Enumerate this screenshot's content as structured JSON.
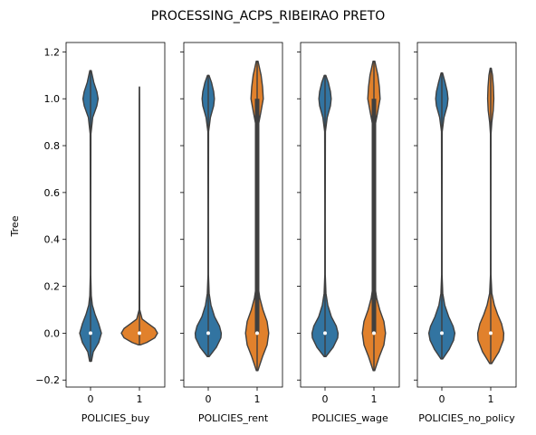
{
  "title": "PROCESSING_ACPS_RIBEIRAO PRETO",
  "chart_data": {
    "type": "violin",
    "title": "PROCESSING_ACPS_RIBEIRAO PRETO",
    "ylabel": "Tree",
    "ylim": [
      -0.23,
      1.24
    ],
    "yticks": [
      -0.2,
      0.0,
      0.2,
      0.4,
      0.6,
      0.8,
      1.0,
      1.2
    ],
    "ytick_labels": [
      "−0.2",
      "0.0",
      "0.2",
      "0.4",
      "0.6",
      "0.8",
      "1.0",
      "1.2"
    ],
    "grid": false,
    "colors": {
      "0": "#3274a1",
      "1": "#e1812c",
      "inner": "#3f3f3f",
      "median": "#ffffff"
    },
    "panels": [
      {
        "xlabel": "POLICIES_buy",
        "categories": [
          "0",
          "1"
        ],
        "violins": [
          {
            "category": "0",
            "median": 0.0,
            "q1": 0.0,
            "q3": 0.0,
            "min": -0.12,
            "max": 1.12,
            "profile": [
              [
                -0.12,
                0.05
              ],
              [
                -0.08,
                0.15
              ],
              [
                -0.04,
                0.45
              ],
              [
                0.0,
                0.6
              ],
              [
                0.04,
                0.45
              ],
              [
                0.08,
                0.25
              ],
              [
                0.12,
                0.1
              ],
              [
                0.16,
                0.04
              ],
              [
                0.25,
                0.012
              ],
              [
                0.5,
                0.01
              ],
              [
                0.85,
                0.02
              ],
              [
                0.92,
                0.12
              ],
              [
                0.97,
                0.35
              ],
              [
                1.0,
                0.42
              ],
              [
                1.03,
                0.35
              ],
              [
                1.07,
                0.18
              ],
              [
                1.12,
                0.04
              ]
            ]
          },
          {
            "category": "1",
            "median": 0.0,
            "q1": 0.0,
            "q3": 0.0,
            "min": -0.05,
            "max": 1.05,
            "profile": [
              [
                -0.05,
                0.05
              ],
              [
                -0.04,
                0.4
              ],
              [
                -0.02,
                0.85
              ],
              [
                0.0,
                1.0
              ],
              [
                0.02,
                0.85
              ],
              [
                0.04,
                0.5
              ],
              [
                0.06,
                0.15
              ],
              [
                0.1,
                0.015
              ],
              [
                0.5,
                0.008
              ],
              [
                1.0,
                0.008
              ],
              [
                1.05,
                0.004
              ]
            ]
          }
        ]
      },
      {
        "xlabel": "POLICIES_rent",
        "categories": [
          "0",
          "1"
        ],
        "violins": [
          {
            "category": "0",
            "median": 0.0,
            "q1": 0.0,
            "q3": 0.0,
            "min": -0.1,
            "max": 1.1,
            "profile": [
              [
                -0.1,
                0.05
              ],
              [
                -0.06,
                0.45
              ],
              [
                -0.02,
                0.7
              ],
              [
                0.0,
                0.72
              ],
              [
                0.03,
                0.62
              ],
              [
                0.07,
                0.35
              ],
              [
                0.12,
                0.15
              ],
              [
                0.17,
                0.05
              ],
              [
                0.25,
                0.012
              ],
              [
                0.5,
                0.01
              ],
              [
                0.86,
                0.02
              ],
              [
                0.92,
                0.12
              ],
              [
                0.97,
                0.3
              ],
              [
                1.0,
                0.34
              ],
              [
                1.03,
                0.3
              ],
              [
                1.07,
                0.18
              ],
              [
                1.1,
                0.04
              ]
            ]
          },
          {
            "category": "1",
            "median": 0.0,
            "q1": 0.0,
            "q3": 1.0,
            "min": -0.16,
            "max": 1.16,
            "profile": [
              [
                -0.16,
                0.04
              ],
              [
                -0.1,
                0.3
              ],
              [
                -0.05,
                0.55
              ],
              [
                0.0,
                0.64
              ],
              [
                0.05,
                0.55
              ],
              [
                0.1,
                0.32
              ],
              [
                0.15,
                0.15
              ],
              [
                0.2,
                0.05
              ],
              [
                0.3,
                0.02
              ],
              [
                0.5,
                0.018
              ],
              [
                0.8,
                0.02
              ],
              [
                0.88,
                0.05
              ],
              [
                0.94,
                0.2
              ],
              [
                1.0,
                0.34
              ],
              [
                1.05,
                0.3
              ],
              [
                1.1,
                0.22
              ],
              [
                1.16,
                0.05
              ]
            ]
          }
        ]
      },
      {
        "xlabel": "POLICIES_wage",
        "categories": [
          "0",
          "1"
        ],
        "violins": [
          {
            "category": "0",
            "median": 0.0,
            "q1": 0.0,
            "q3": 0.0,
            "min": -0.1,
            "max": 1.1,
            "profile": [
              [
                -0.1,
                0.05
              ],
              [
                -0.06,
                0.45
              ],
              [
                -0.02,
                0.7
              ],
              [
                0.0,
                0.72
              ],
              [
                0.03,
                0.62
              ],
              [
                0.07,
                0.35
              ],
              [
                0.12,
                0.15
              ],
              [
                0.17,
                0.05
              ],
              [
                0.25,
                0.012
              ],
              [
                0.5,
                0.01
              ],
              [
                0.86,
                0.02
              ],
              [
                0.92,
                0.12
              ],
              [
                0.97,
                0.3
              ],
              [
                1.0,
                0.34
              ],
              [
                1.03,
                0.3
              ],
              [
                1.07,
                0.18
              ],
              [
                1.1,
                0.04
              ]
            ]
          },
          {
            "category": "1",
            "median": 0.0,
            "q1": 0.0,
            "q3": 1.0,
            "min": -0.16,
            "max": 1.16,
            "profile": [
              [
                -0.16,
                0.04
              ],
              [
                -0.1,
                0.3
              ],
              [
                -0.05,
                0.55
              ],
              [
                0.0,
                0.64
              ],
              [
                0.05,
                0.55
              ],
              [
                0.1,
                0.32
              ],
              [
                0.15,
                0.15
              ],
              [
                0.2,
                0.05
              ],
              [
                0.3,
                0.02
              ],
              [
                0.5,
                0.018
              ],
              [
                0.8,
                0.02
              ],
              [
                0.88,
                0.05
              ],
              [
                0.94,
                0.2
              ],
              [
                1.0,
                0.34
              ],
              [
                1.05,
                0.3
              ],
              [
                1.1,
                0.22
              ],
              [
                1.16,
                0.05
              ]
            ]
          }
        ]
      },
      {
        "xlabel": "POLICIES_no_policy",
        "categories": [
          "0",
          "1"
        ],
        "violins": [
          {
            "category": "0",
            "median": 0.0,
            "q1": 0.0,
            "q3": 0.0,
            "min": -0.11,
            "max": 1.11,
            "profile": [
              [
                -0.11,
                0.05
              ],
              [
                -0.07,
                0.4
              ],
              [
                -0.03,
                0.65
              ],
              [
                0.0,
                0.72
              ],
              [
                0.03,
                0.62
              ],
              [
                0.07,
                0.38
              ],
              [
                0.12,
                0.16
              ],
              [
                0.17,
                0.05
              ],
              [
                0.25,
                0.012
              ],
              [
                0.5,
                0.01
              ],
              [
                0.86,
                0.02
              ],
              [
                0.92,
                0.12
              ],
              [
                0.97,
                0.3
              ],
              [
                1.0,
                0.34
              ],
              [
                1.03,
                0.3
              ],
              [
                1.07,
                0.18
              ],
              [
                1.11,
                0.04
              ]
            ]
          },
          {
            "category": "1",
            "median": 0.0,
            "q1": 0.0,
            "q3": 0.0,
            "min": -0.13,
            "max": 1.13,
            "profile": [
              [
                -0.13,
                0.05
              ],
              [
                -0.08,
                0.45
              ],
              [
                -0.03,
                0.7
              ],
              [
                0.0,
                0.72
              ],
              [
                0.04,
                0.6
              ],
              [
                0.08,
                0.38
              ],
              [
                0.12,
                0.2
              ],
              [
                0.17,
                0.06
              ],
              [
                0.25,
                0.012
              ],
              [
                0.5,
                0.008
              ],
              [
                0.85,
                0.015
              ],
              [
                0.9,
                0.06
              ],
              [
                0.95,
                0.14
              ],
              [
                1.0,
                0.17
              ],
              [
                1.05,
                0.15
              ],
              [
                1.1,
                0.1
              ],
              [
                1.13,
                0.03
              ]
            ]
          }
        ]
      }
    ]
  }
}
